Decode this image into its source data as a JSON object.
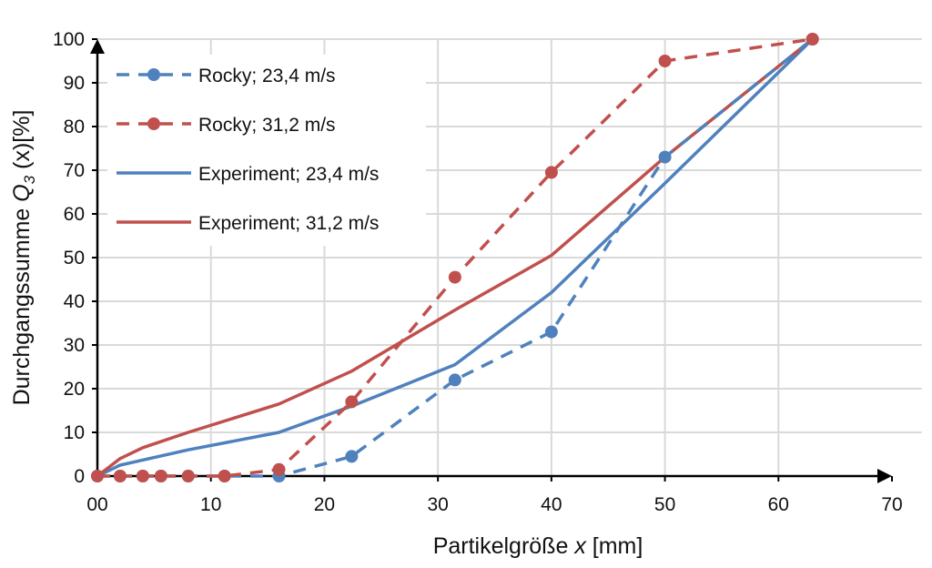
{
  "chart_data": {
    "type": "line",
    "xlabel": "Partikelgröße x [mm]",
    "xlabel_parts": [
      "Partikelgröße ",
      "x",
      " [mm]"
    ],
    "ylabel_parts": [
      "Durchgangssumme ",
      "Q",
      "3",
      " (x)[%]"
    ],
    "xlim": [
      0,
      70
    ],
    "ylim": [
      0,
      100
    ],
    "x_ticks": [
      "00",
      "10",
      "20",
      "30",
      "40",
      "50",
      "60",
      "70"
    ],
    "y_ticks": [
      "0",
      "10",
      "20",
      "30",
      "40",
      "50",
      "60",
      "70",
      "80",
      "90",
      "100"
    ],
    "grid": true,
    "legend_position": "top-left",
    "series": [
      {
        "name": "Rocky; 23,4 m/s",
        "color": "#4f81bd",
        "dashed": true,
        "markers": true,
        "x": [
          0,
          2,
          4,
          5.6,
          8,
          11.2,
          16,
          22.4,
          31.5,
          40,
          50,
          63
        ],
        "y": [
          0,
          0,
          0,
          0,
          0,
          0,
          0,
          4.5,
          22,
          33,
          73,
          100
        ]
      },
      {
        "name": "Rocky; 31,2 m/s",
        "color": "#c0504d",
        "dashed": true,
        "markers": true,
        "x": [
          0,
          2,
          4,
          5.6,
          8,
          11.2,
          16,
          22.4,
          31.5,
          40,
          50,
          63
        ],
        "y": [
          0,
          0,
          0,
          0,
          0,
          0,
          1.5,
          17,
          45.5,
          69.5,
          95,
          100
        ]
      },
      {
        "name": "Experiment; 23,4 m/s",
        "color": "#4f81bd",
        "dashed": false,
        "markers": false,
        "x": [
          0,
          2,
          8,
          16,
          22.4,
          31.5,
          40,
          50,
          63
        ],
        "y": [
          0,
          2.5,
          6,
          10,
          16,
          25.5,
          42,
          67,
          100
        ]
      },
      {
        "name": "Experiment; 31,2 m/s",
        "color": "#c0504d",
        "dashed": false,
        "markers": false,
        "x": [
          0,
          2,
          4,
          8,
          16,
          22.4,
          31.5,
          40,
          50,
          63
        ],
        "y": [
          0,
          4,
          6.5,
          10,
          16.5,
          24,
          38,
          50.5,
          73,
          100
        ]
      }
    ]
  }
}
